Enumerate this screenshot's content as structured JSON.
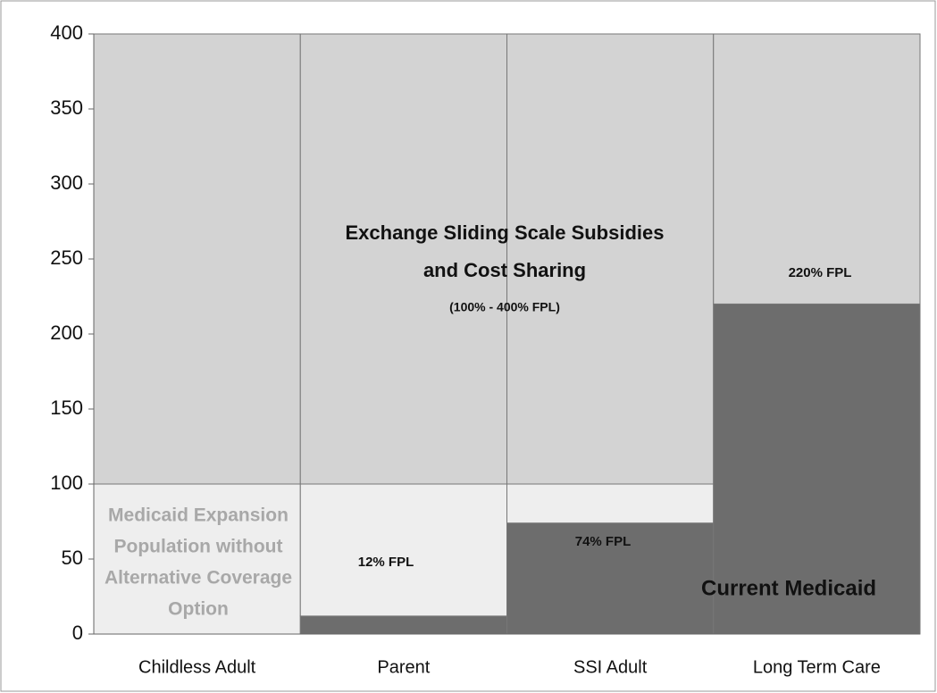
{
  "chart_data": {
    "type": "stacked_bar",
    "categories": [
      "Childless Adult",
      "Parent",
      "SSI Adult",
      "Long Term Care"
    ],
    "series": [
      {
        "color": "#6d6d6d",
        "values": [
          0,
          12,
          74,
          220
        ],
        "value_labels": [
          null,
          "12% FPL",
          "74% FPL",
          "220% FPL"
        ]
      },
      {
        "color": "#eeeeee",
        "values": [
          100,
          88,
          26,
          0
        ]
      },
      {
        "color": "#d3d3d3",
        "values": [
          300,
          300,
          300,
          180
        ]
      }
    ],
    "ylim": [
      0,
      400
    ],
    "yticks": [
      0,
      50,
      100,
      150,
      200,
      250,
      300,
      350,
      400
    ],
    "annotations": [
      {
        "lines": [
          "Exchange Sliding Scale Subsidies",
          "and Cost Sharing"
        ]
      },
      {
        "lines": [
          "(100% - 400% FPL)"
        ]
      },
      {
        "lines": [
          "Medicaid Expansion",
          "Population without",
          "Alternative Coverage",
          "Option"
        ]
      },
      {
        "lines": [
          "Current Medicaid"
        ]
      }
    ]
  }
}
